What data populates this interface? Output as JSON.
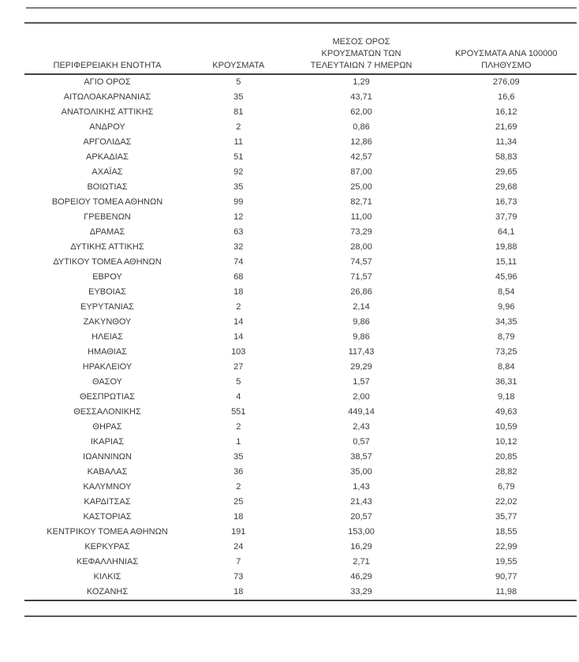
{
  "table": {
    "headers": [
      "ΠΕΡΙΦΕΡΕΙΑΚΗ ΕΝΟΤΗΤΑ",
      "ΚΡΟΥΣΜΑΤΑ",
      "ΜΕΣΟΣ ΟΡΟΣ\nΚΡΟΥΣΜΑΤΩΝ ΤΩΝ\nΤΕΛΕΥΤΑΙΩΝ 7 ΗΜΕΡΩΝ",
      "ΚΡΟΥΣΜΑΤΑ ΑΝΑ 100000\nΠΛΗΘΥΣΜΟ"
    ],
    "rows": [
      [
        "ΑΓΙΟ ΟΡΟΣ",
        "5",
        "1,29",
        "276,09"
      ],
      [
        "ΑΙΤΩΛΟΑΚΑΡΝΑΝΙΑΣ",
        "35",
        "43,71",
        "16,6"
      ],
      [
        "ΑΝΑΤΟΛΙΚΗΣ ΑΤΤΙΚΗΣ",
        "81",
        "62,00",
        "16,12"
      ],
      [
        "ΑΝΔΡΟΥ",
        "2",
        "0,86",
        "21,69"
      ],
      [
        "ΑΡΓΟΛΙΔΑΣ",
        "11",
        "12,86",
        "11,34"
      ],
      [
        "ΑΡΚΑΔΙΑΣ",
        "51",
        "42,57",
        "58,83"
      ],
      [
        "ΑΧΑΪΑΣ",
        "92",
        "87,00",
        "29,65"
      ],
      [
        "ΒΟΙΩΤΙΑΣ",
        "35",
        "25,00",
        "29,68"
      ],
      [
        "ΒΟΡΕΙΟΥ ΤΟΜΕΑ ΑΘΗΝΩΝ",
        "99",
        "82,71",
        "16,73"
      ],
      [
        "ΓΡΕΒΕΝΩΝ",
        "12",
        "11,00",
        "37,79"
      ],
      [
        "ΔΡΑΜΑΣ",
        "63",
        "73,29",
        "64,1"
      ],
      [
        "ΔΥΤΙΚΗΣ ΑΤΤΙΚΗΣ",
        "32",
        "28,00",
        "19,88"
      ],
      [
        "ΔΥΤΙΚΟΥ ΤΟΜΕΑ ΑΘΗΝΩΝ",
        "74",
        "74,57",
        "15,11"
      ],
      [
        "ΕΒΡΟΥ",
        "68",
        "71,57",
        "45,96"
      ],
      [
        "ΕΥΒΟΙΑΣ",
        "18",
        "26,86",
        "8,54"
      ],
      [
        "ΕΥΡΥΤΑΝΙΑΣ",
        "2",
        "2,14",
        "9,96"
      ],
      [
        "ΖΑΚΥΝΘΟΥ",
        "14",
        "9,86",
        "34,35"
      ],
      [
        "ΗΛΕΙΑΣ",
        "14",
        "9,86",
        "8,79"
      ],
      [
        "ΗΜΑΘΙΑΣ",
        "103",
        "117,43",
        "73,25"
      ],
      [
        "ΗΡΑΚΛΕΙΟΥ",
        "27",
        "29,29",
        "8,84"
      ],
      [
        "ΘΑΣΟΥ",
        "5",
        "1,57",
        "36,31"
      ],
      [
        "ΘΕΣΠΡΩΤΙΑΣ",
        "4",
        "2,00",
        "9,18"
      ],
      [
        "ΘΕΣΣΑΛΟΝΙΚΗΣ",
        "551",
        "449,14",
        "49,63"
      ],
      [
        "ΘΗΡΑΣ",
        "2",
        "2,43",
        "10,59"
      ],
      [
        "ΙΚΑΡΙΑΣ",
        "1",
        "0,57",
        "10,12"
      ],
      [
        "ΙΩΑΝΝΙΝΩΝ",
        "35",
        "38,57",
        "20,85"
      ],
      [
        "ΚΑΒΑΛΑΣ",
        "36",
        "35,00",
        "28,82"
      ],
      [
        "ΚΑΛΥΜΝΟΥ",
        "2",
        "1,43",
        "6,79"
      ],
      [
        "ΚΑΡΔΙΤΣΑΣ",
        "25",
        "21,43",
        "22,02"
      ],
      [
        "ΚΑΣΤΟΡΙΑΣ",
        "18",
        "20,57",
        "35,77"
      ],
      [
        "ΚΕΝΤΡΙΚΟΥ ΤΟΜΕΑ ΑΘΗΝΩΝ",
        "191",
        "153,00",
        "18,55"
      ],
      [
        "ΚΕΡΚΥΡΑΣ",
        "24",
        "16,29",
        "22,99"
      ],
      [
        "ΚΕΦΑΛΛΗΝΙΑΣ",
        "7",
        "2,71",
        "19,55"
      ],
      [
        "ΚΙΛΚΙΣ",
        "73",
        "46,29",
        "90,77"
      ],
      [
        "ΚΟΖΑΝΗΣ",
        "18",
        "33,29",
        "11,98"
      ]
    ],
    "cell_names": [
      "region-cell",
      "cases-cell",
      "avg7days-cell",
      "per100k-cell"
    ]
  }
}
